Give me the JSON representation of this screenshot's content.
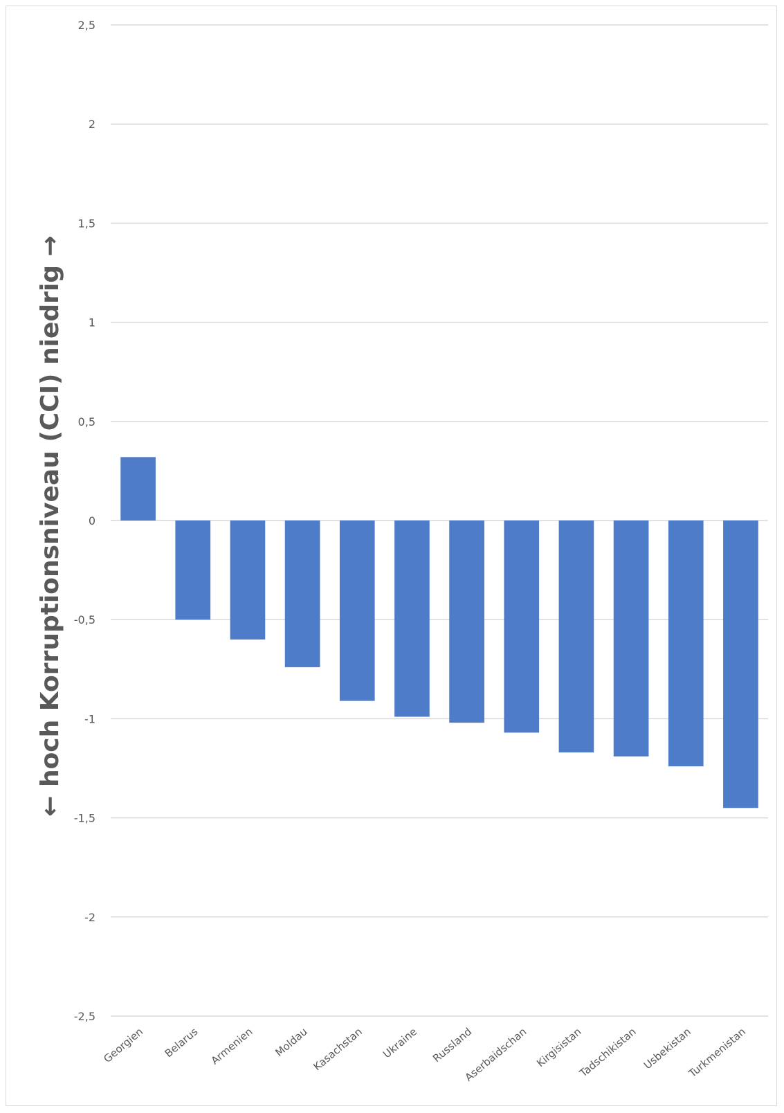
{
  "chart_data": {
    "type": "bar",
    "categories": [
      "Georgien",
      "Belarus",
      "Armenien",
      "Moldau",
      "Kasachstan",
      "Ukraine",
      "Russland",
      "Aserbaidschan",
      "Kirgisistan",
      "Tadschikistan",
      "Usbekistan",
      "Turkmenistan"
    ],
    "values": [
      0.32,
      -0.5,
      -0.6,
      -0.74,
      -0.91,
      -0.99,
      -1.02,
      -1.07,
      -1.17,
      -1.19,
      -1.24,
      -1.45
    ],
    "ylim": [
      -2.5,
      2.5
    ],
    "yticks": [
      2.5,
      2,
      1.5,
      1,
      0.5,
      0,
      -0.5,
      -1,
      -1.5,
      -2,
      -2.5
    ],
    "ytick_labels": [
      "2,5",
      "2",
      "1,5",
      "1",
      "0,5",
      "0",
      "-0,5",
      "-1",
      "-1,5",
      "-2",
      "-2,5"
    ],
    "ylabel": "← hoch    Korruptionsniveau (CCI)    niedrig →",
    "xlabel": "",
    "title": "",
    "grid": true,
    "legend": "none",
    "bar_color": "#4E7CC8",
    "grid_color": "#D9D9D9"
  }
}
